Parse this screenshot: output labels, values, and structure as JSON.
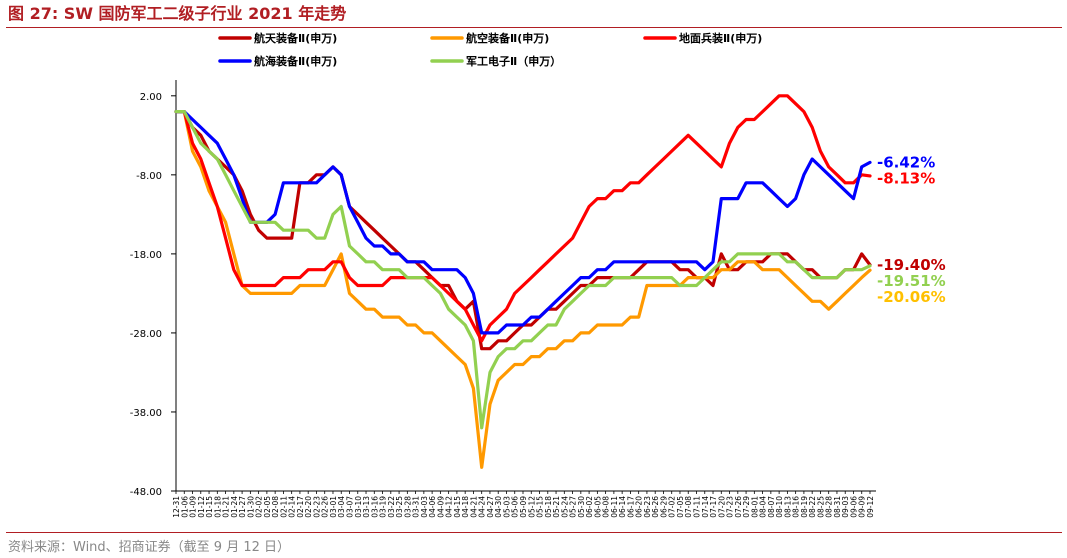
{
  "figure": {
    "title": "图 27:  SW 国防军工二级子行业 2021 年走势",
    "source": "资料来源：Wind、招商证券（截至 9 月 12 日）"
  },
  "chart_data": {
    "type": "line",
    "ylim": [
      -48,
      4
    ],
    "yticks": [
      "2.00",
      "-8.00",
      "-18.00",
      "-28.00",
      "-38.00",
      "-48.00"
    ],
    "ytick_values": [
      2,
      -8,
      -18,
      -28,
      -38,
      -48
    ],
    "xticks": [
      "12-31",
      "01-06",
      "01-09",
      "01-12",
      "01-15",
      "01-18",
      "01-21",
      "01-24",
      "01-27",
      "01-30",
      "02-02",
      "02-05",
      "02-08",
      "02-11",
      "02-14",
      "02-17",
      "02-20",
      "02-23",
      "02-26",
      "03-01",
      "03-04",
      "03-07",
      "03-10",
      "03-13",
      "03-16",
      "03-19",
      "03-22",
      "03-25",
      "03-28",
      "03-31",
      "04-03",
      "04-06",
      "04-09",
      "04-12",
      "04-15",
      "04-18",
      "04-21",
      "04-24",
      "04-27",
      "04-30",
      "05-03",
      "05-06",
      "05-09",
      "05-12",
      "05-15",
      "05-18",
      "05-21",
      "05-24",
      "05-27",
      "05-30",
      "06-02",
      "06-05",
      "06-08",
      "06-11",
      "06-14",
      "06-17",
      "06-20",
      "06-23",
      "06-26",
      "06-29",
      "07-02",
      "07-05",
      "07-08",
      "07-11",
      "07-14",
      "07-17",
      "07-20",
      "07-23",
      "07-26",
      "07-29",
      "08-01",
      "08-04",
      "08-07",
      "08-10",
      "08-13",
      "08-16",
      "08-19",
      "08-22",
      "08-25",
      "08-28",
      "08-31",
      "09-03",
      "09-06",
      "09-09",
      "09-12"
    ],
    "series": [
      {
        "name": "航天装备Ⅱ(申万)",
        "color": "#c00000",
        "end_label": "-19.40%",
        "label_color": "#c00000",
        "values": [
          0,
          0,
          -2,
          -3,
          -5,
          -6,
          -7,
          -8,
          -10,
          -13,
          -15,
          -16,
          -16,
          -16,
          -16,
          -9,
          -9,
          -8,
          -8,
          -7,
          -8,
          -12,
          -13,
          -14,
          -15,
          -16,
          -17,
          -18,
          -19,
          -19,
          -20,
          -21,
          -22,
          -22,
          -24,
          -25,
          -24,
          -30,
          -30,
          -29,
          -29,
          -28,
          -27,
          -27,
          -26,
          -25,
          -25,
          -24,
          -23,
          -22,
          -22,
          -21,
          -21,
          -21,
          -21,
          -21,
          -20,
          -19,
          -19,
          -19,
          -19,
          -20,
          -20,
          -21,
          -21,
          -22,
          -18,
          -20,
          -20,
          -19,
          -19,
          -19,
          -18,
          -18,
          -18,
          -19,
          -20,
          -20,
          -21,
          -21,
          -21,
          -20,
          -20,
          -18,
          -19.4
        ]
      },
      {
        "name": "航空装备Ⅱ(申万)",
        "color": "#ff9900",
        "end_label": "-20.06%",
        "label_color": "#ffc000",
        "values": [
          0,
          0,
          -5,
          -7,
          -10,
          -12,
          -14,
          -18,
          -22,
          -23,
          -23,
          -23,
          -23,
          -23,
          -23,
          -22,
          -22,
          -22,
          -22,
          -20,
          -18,
          -23,
          -24,
          -25,
          -25,
          -26,
          -26,
          -26,
          -27,
          -27,
          -28,
          -28,
          -29,
          -30,
          -31,
          -32,
          -35,
          -45,
          -37,
          -34,
          -33,
          -32,
          -32,
          -31,
          -31,
          -30,
          -30,
          -29,
          -29,
          -28,
          -28,
          -27,
          -27,
          -27,
          -27,
          -26,
          -26,
          -22,
          -22,
          -22,
          -22,
          -22,
          -21,
          -21,
          -21,
          -21,
          -20,
          -20,
          -19,
          -19,
          -19,
          -20,
          -20,
          -20,
          -21,
          -22,
          -23,
          -24,
          -24,
          -25,
          -24,
          -23,
          -22,
          -21,
          -20.06
        ]
      },
      {
        "name": "地面兵装Ⅱ(申万)",
        "color": "#ff0000",
        "end_label": "-8.13%",
        "label_color": "#ff0000",
        "values": [
          0,
          0,
          -4,
          -6,
          -9,
          -12,
          -16,
          -20,
          -22,
          -22,
          -22,
          -22,
          -22,
          -21,
          -21,
          -21,
          -20,
          -20,
          -20,
          -19,
          -19,
          -21,
          -22,
          -22,
          -22,
          -22,
          -21,
          -21,
          -21,
          -21,
          -21,
          -21,
          -22,
          -23,
          -24,
          -25,
          -27,
          -29,
          -27,
          -26,
          -25,
          -23,
          -22,
          -21,
          -20,
          -19,
          -18,
          -17,
          -16,
          -14,
          -12,
          -11,
          -11,
          -10,
          -10,
          -9,
          -9,
          -8,
          -7,
          -6,
          -5,
          -4,
          -3,
          -4,
          -5,
          -6,
          -7,
          -4,
          -2,
          -1,
          -1,
          0,
          1,
          2,
          2,
          1,
          0,
          -2,
          -5,
          -7,
          -8,
          -9,
          -9,
          -8,
          -8.13
        ]
      },
      {
        "name": "航海装备Ⅱ(申万)",
        "color": "#0000ff",
        "end_label": "-6.42%",
        "label_color": "#0000ff",
        "values": [
          0,
          0,
          -1,
          -2,
          -3,
          -4,
          -6,
          -8,
          -11,
          -14,
          -14,
          -14,
          -13,
          -9,
          -9,
          -9,
          -9,
          -9,
          -8,
          -7,
          -8,
          -12,
          -14,
          -16,
          -17,
          -17,
          -18,
          -18,
          -19,
          -19,
          -19,
          -20,
          -20,
          -20,
          -20,
          -21,
          -23,
          -28,
          -28,
          -28,
          -27,
          -27,
          -27,
          -26,
          -26,
          -25,
          -24,
          -23,
          -22,
          -21,
          -21,
          -20,
          -20,
          -19,
          -19,
          -19,
          -19,
          -19,
          -19,
          -19,
          -19,
          -19,
          -19,
          -19,
          -20,
          -19,
          -11,
          -11,
          -11,
          -9,
          -9,
          -9,
          -10,
          -11,
          -12,
          -11,
          -8,
          -6,
          -7,
          -8,
          -9,
          -10,
          -11,
          -7,
          -6.42
        ]
      },
      {
        "name": "军工电子Ⅱ（申万）",
        "color": "#92d050",
        "end_label": "-19.51%",
        "label_color": "#92d050",
        "values": [
          0,
          0,
          -2,
          -4,
          -5,
          -6,
          -8,
          -10,
          -12,
          -14,
          -14,
          -14,
          -14,
          -15,
          -15,
          -15,
          -15,
          -16,
          -16,
          -13,
          -12,
          -17,
          -18,
          -19,
          -19,
          -20,
          -20,
          -20,
          -21,
          -21,
          -21,
          -22,
          -23,
          -25,
          -26,
          -27,
          -29,
          -40,
          -33,
          -31,
          -30,
          -30,
          -29,
          -29,
          -28,
          -27,
          -27,
          -25,
          -24,
          -23,
          -22,
          -22,
          -22,
          -21,
          -21,
          -21,
          -21,
          -21,
          -21,
          -21,
          -21,
          -22,
          -22,
          -22,
          -21,
          -20,
          -19,
          -19,
          -18,
          -18,
          -18,
          -18,
          -18,
          -18,
          -19,
          -19,
          -20,
          -21,
          -21,
          -21,
          -21,
          -20,
          -20,
          -20,
          -19.51
        ]
      }
    ],
    "legend_placement": "top"
  }
}
